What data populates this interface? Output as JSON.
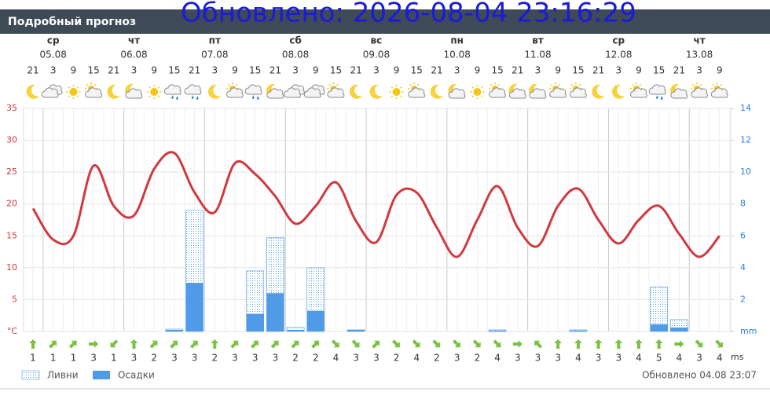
{
  "header": {
    "title": "Подробный прогноз",
    "overlay": "Обновлено: 2026-08-04 23:16:29"
  },
  "chart_data": {
    "type": "line",
    "days": [
      {
        "name": "ср",
        "date": "05.08"
      },
      {
        "name": "чт",
        "date": "06.08"
      },
      {
        "name": "пт",
        "date": "07.08"
      },
      {
        "name": "сб",
        "date": "08.08"
      },
      {
        "name": "вс",
        "date": "09.08"
      },
      {
        "name": "пн",
        "date": "10.08"
      },
      {
        "name": "вт",
        "date": "11.08"
      },
      {
        "name": "ср",
        "date": "12.08"
      },
      {
        "name": "чт",
        "date": "13.08"
      }
    ],
    "categories": [
      21,
      3,
      9,
      15,
      21,
      3,
      9,
      15,
      21,
      3,
      9,
      15,
      21,
      3,
      9,
      15,
      21,
      3,
      9,
      15,
      21,
      3,
      9,
      15,
      21,
      3,
      9,
      15,
      21,
      3,
      9,
      15,
      21,
      3,
      9
    ],
    "values": [
      19.3,
      14.4,
      15,
      26,
      19.7,
      18.2,
      25.5,
      28,
      21.8,
      18.7,
      26.4,
      24.7,
      21.2,
      16.9,
      19.7,
      23.4,
      17.3,
      14,
      21.4,
      21.8,
      16.3,
      11.7,
      17.5,
      22.8,
      16.3,
      13.4,
      19.7,
      22.4,
      17.5,
      13.8,
      17.5,
      19.7,
      15.3,
      11.7,
      15
    ],
    "color": "#d0393f",
    "series": [
      {
        "name": "Ливни",
        "color": "#4f9be8",
        "axis": "y2",
        "values": [
          0,
          0,
          0,
          0,
          0,
          0,
          0,
          0.15,
          7.6,
          0,
          0,
          3.8,
          5.9,
          0.25,
          4,
          0,
          0.1,
          0,
          0,
          0,
          0,
          0,
          0,
          0.1,
          0,
          0,
          0,
          0.1,
          0,
          0,
          0,
          2.8,
          0.75,
          0,
          0
        ]
      },
      {
        "name": "Осадки",
        "color": "#4f9be8",
        "axis": "y2",
        "values": [
          0,
          0,
          0,
          0,
          0,
          0,
          0,
          0.1,
          3.05,
          0,
          0,
          1.1,
          2.4,
          0.1,
          1.3,
          0,
          0.1,
          0,
          0,
          0,
          0,
          0,
          0,
          0.05,
          0,
          0,
          0,
          0.05,
          0,
          0,
          0,
          0.45,
          0.25,
          0,
          0
        ]
      }
    ],
    "ylim": [
      0,
      35
    ],
    "yticks": [
      {
        "value": 0,
        "label": "°C"
      },
      5,
      10,
      15,
      20,
      25,
      30,
      35
    ],
    "y2lim": [
      0,
      14
    ],
    "y2ticks": [
      {
        "value": 0,
        "label": "mm"
      },
      2,
      4,
      6,
      8,
      10,
      12,
      14
    ],
    "grid": true,
    "wind_speed": [
      1,
      1,
      1,
      3,
      1,
      3,
      2,
      3,
      3,
      2,
      3,
      3,
      3,
      2,
      2,
      4,
      3,
      3,
      2,
      4,
      2,
      3,
      2,
      4,
      3,
      3,
      3,
      4,
      3,
      3,
      4,
      5,
      4,
      3,
      4
    ],
    "wind_unit": "ms"
  },
  "footer": "Обновлено 04.08 23:07"
}
